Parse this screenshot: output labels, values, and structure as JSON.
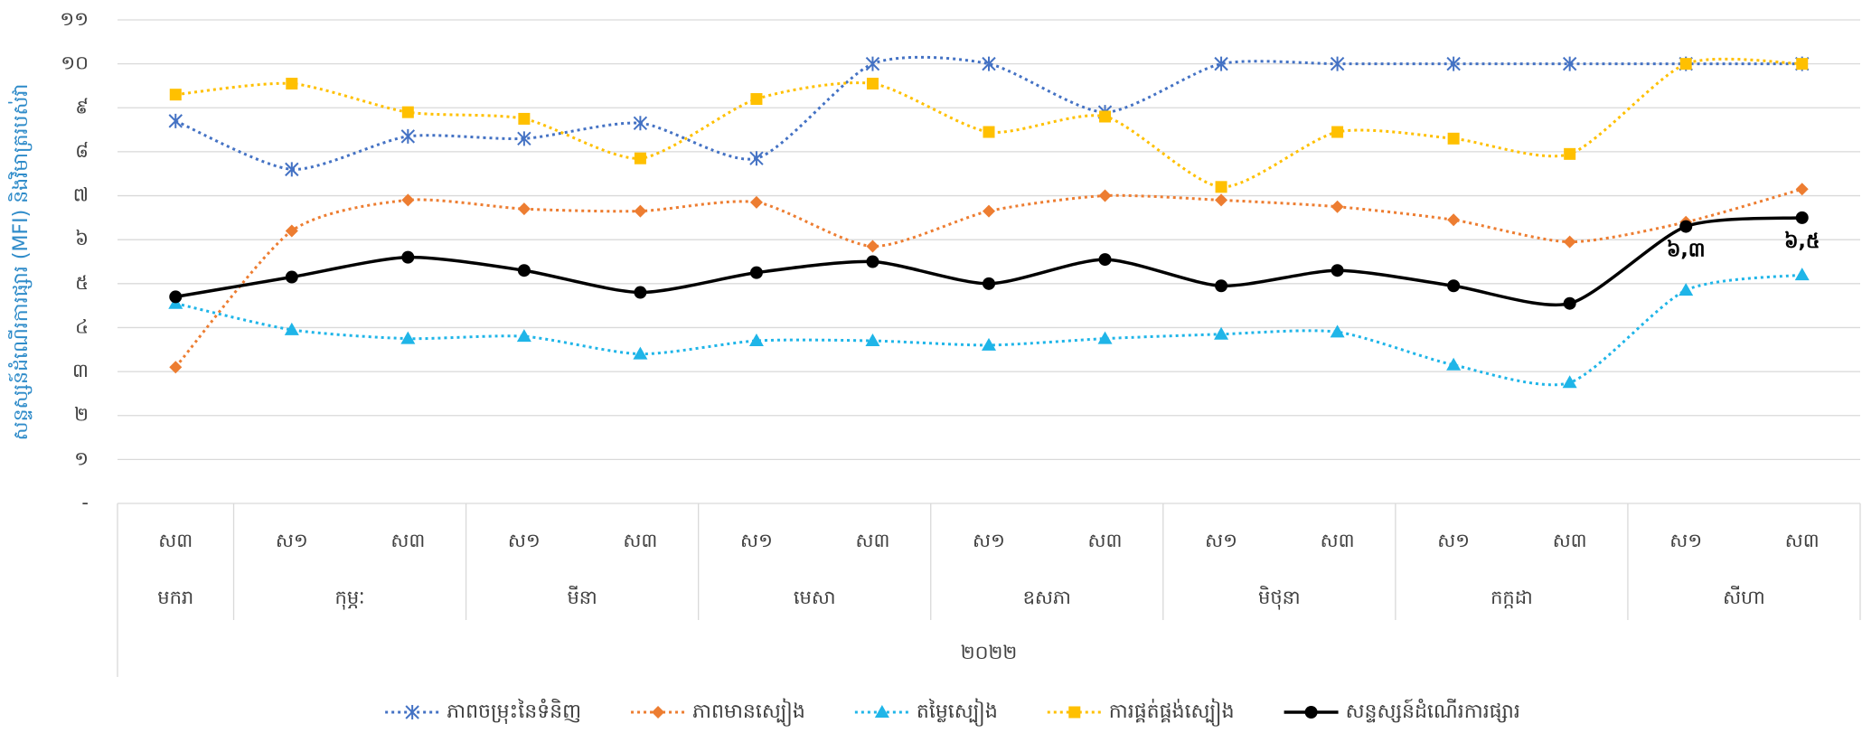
{
  "chart_data": {
    "type": "line",
    "y_label": "សន្ទស្សន៍ដំណើរការផ្សារ (MFI) និងវិមាត្ររបស់វា",
    "category_groups": [
      {
        "label": "មករា",
        "categories": [
          "ស៣"
        ]
      },
      {
        "label": "កុម្ភៈ",
        "categories": [
          "ស១",
          "ស៣"
        ]
      },
      {
        "label": "មីនា",
        "categories": [
          "ស១",
          "ស៣"
        ]
      },
      {
        "label": "មេសា",
        "categories": [
          "ស១",
          "ស៣"
        ]
      },
      {
        "label": "ឧសភា",
        "categories": [
          "ស១",
          "ស៣"
        ]
      },
      {
        "label": "មិថុនា",
        "categories": [
          "ស១",
          "ស៣"
        ]
      },
      {
        "label": "កក្កដា",
        "categories": [
          "ស១",
          "ស៣"
        ]
      },
      {
        "label": "សីហា",
        "categories": [
          "ស១",
          "ស៣"
        ]
      }
    ],
    "year_label": "២០២២",
    "ylim": [
      0,
      11
    ],
    "yticks": [
      {
        "value": 0,
        "label": "-"
      },
      {
        "value": 1,
        "label": "១"
      },
      {
        "value": 2,
        "label": "២"
      },
      {
        "value": 3,
        "label": "៣"
      },
      {
        "value": 4,
        "label": "៤"
      },
      {
        "value": 5,
        "label": "៥"
      },
      {
        "value": 6,
        "label": "៦"
      },
      {
        "value": 7,
        "label": "៧"
      },
      {
        "value": 8,
        "label": "៨"
      },
      {
        "value": 9,
        "label": "៩"
      },
      {
        "value": 10,
        "label": "១០"
      },
      {
        "value": 11,
        "label": "១១"
      }
    ],
    "grid": true,
    "legend": "bottom",
    "series": [
      {
        "name": "ភាពចម្រុះនៃទំនិញ",
        "color": "#4472c4",
        "marker": "star",
        "dash": "dotted",
        "values": [
          8.7,
          7.6,
          8.35,
          8.3,
          8.65,
          7.85,
          10,
          10,
          8.9,
          10,
          10,
          10,
          10,
          10,
          10
        ]
      },
      {
        "name": "ភាពមានស្បៀង",
        "color": "#ed7d31",
        "marker": "diamond",
        "dash": "dotted",
        "values": [
          3.1,
          6.2,
          6.9,
          6.7,
          6.65,
          6.85,
          5.85,
          6.65,
          7.0,
          6.9,
          6.75,
          6.45,
          5.95,
          6.4,
          7.15
        ]
      },
      {
        "name": "តម្លៃស្បៀង",
        "color": "#1fb5e8",
        "marker": "triangle",
        "dash": "dotted",
        "values": [
          4.55,
          3.95,
          3.75,
          3.8,
          3.4,
          3.7,
          3.7,
          3.6,
          3.75,
          3.85,
          3.9,
          3.15,
          2.75,
          4.85,
          5.2
        ]
      },
      {
        "name": "ការផ្គត់ផ្គង់ស្បៀង",
        "color": "#ffc000",
        "marker": "square",
        "dash": "dotted",
        "values": [
          9.3,
          9.55,
          8.9,
          8.75,
          7.85,
          9.2,
          9.55,
          8.45,
          8.8,
          7.2,
          8.45,
          8.3,
          7.95,
          10,
          10
        ]
      },
      {
        "name": "សន្ទស្សន៍ដំណើរការផ្សារ",
        "color": "#000000",
        "marker": "circle",
        "dash": "solid",
        "values": [
          4.7,
          5.15,
          5.6,
          5.3,
          4.8,
          5.25,
          5.5,
          5.0,
          5.55,
          4.95,
          5.3,
          4.95,
          4.55,
          6.3,
          6.5
        ],
        "value_labels": [
          null,
          null,
          null,
          null,
          null,
          null,
          null,
          null,
          null,
          null,
          null,
          null,
          null,
          "៦,៣",
          "៦,៥"
        ]
      }
    ]
  }
}
